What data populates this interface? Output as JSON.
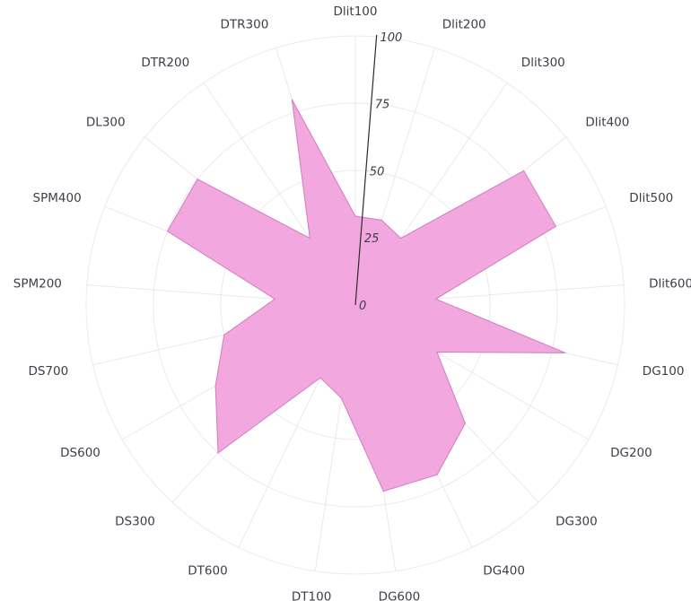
{
  "chart_data": {
    "type": "radar",
    "title": "",
    "categories": [
      "Dlit100",
      "Dlit200",
      "Dlit300",
      "Dlit400",
      "Dlit500",
      "Dlit600",
      "DG100",
      "DG200",
      "DG300",
      "DG400",
      "DG600",
      "DT100",
      "DT600",
      "DS300",
      "DS600",
      "DS700",
      "SPM200",
      "SPM400",
      "DL300",
      "DTR200",
      "DTR300"
    ],
    "series": [
      {
        "values": [
          33,
          33,
          30,
          80,
          80,
          30,
          80,
          35,
          60,
          70,
          70,
          35,
          30,
          75,
          60,
          50,
          30,
          75,
          75,
          30,
          80
        ]
      }
    ],
    "radial_axis": {
      "range": [
        0,
        100
      ],
      "ticks": [
        "0",
        "25",
        "50",
        "75",
        "100"
      ]
    },
    "colors": {
      "fill": "#f19fdc",
      "stroke": "#d07cc0",
      "grid": "#ece8ec",
      "axis": "#2b2b2b",
      "text": "#3a3f47"
    }
  }
}
